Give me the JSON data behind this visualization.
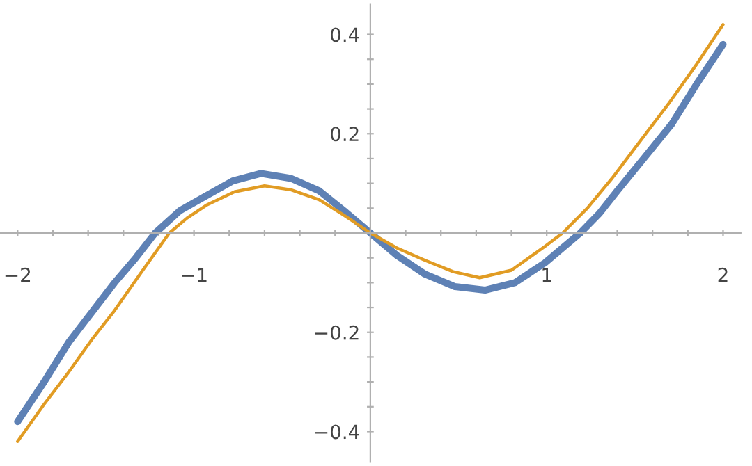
{
  "chart_data": {
    "type": "line",
    "series": [
      {
        "color": "#5e81b5",
        "x": [
          -2,
          -1.85,
          -1.71,
          -1.58,
          -1.45,
          -1.33,
          -1.22,
          -1.08,
          -0.93,
          -0.78,
          -0.62,
          -0.45,
          -0.29,
          -0.15,
          0,
          0.15,
          0.31,
          0.48,
          0.65,
          0.82,
          0.99,
          1.09,
          1.19,
          1.3,
          1.4,
          1.55,
          1.71,
          1.85,
          2
        ],
        "values": [
          -0.38,
          -0.3,
          -0.22,
          -0.16,
          -0.1,
          -0.05,
          0,
          0.045,
          0.075,
          0.105,
          0.12,
          0.11,
          0.085,
          0.045,
          0,
          -0.045,
          -0.083,
          -0.108,
          -0.115,
          -0.1,
          -0.06,
          -0.03,
          0,
          0.04,
          0.085,
          0.15,
          0.22,
          0.3,
          0.38
        ]
      },
      {
        "color": "#e19c24",
        "x": [
          -2,
          -1.85,
          -1.71,
          -1.58,
          -1.45,
          -1.3,
          -1.14,
          -1.04,
          -0.93,
          -0.77,
          -0.6,
          -0.45,
          -0.29,
          -0.15,
          0,
          0.15,
          0.31,
          0.47,
          0.62,
          0.8,
          0.99,
          1.09,
          1.23,
          1.37,
          1.53,
          1.69,
          1.85,
          2
        ],
        "values": [
          -0.42,
          -0.345,
          -0.28,
          -0.215,
          -0.156,
          -0.08,
          0,
          0.03,
          0.056,
          0.083,
          0.095,
          0.087,
          0.067,
          0.036,
          0,
          -0.03,
          -0.055,
          -0.078,
          -0.09,
          -0.075,
          -0.027,
          0,
          0.05,
          0.11,
          0.185,
          0.26,
          0.34,
          0.42
        ]
      }
    ],
    "xlim": [
      -2.1,
      2.1
    ],
    "ylim": [
      -0.46,
      0.46
    ],
    "xticks": [
      {
        "value": -2,
        "label": "−2"
      },
      {
        "value": -1.8,
        "label": null
      },
      {
        "value": -1.6,
        "label": null
      },
      {
        "value": -1.4,
        "label": null
      },
      {
        "value": -1.2,
        "label": null
      },
      {
        "value": -1,
        "label": "−1"
      },
      {
        "value": -0.8,
        "label": null
      },
      {
        "value": -0.6,
        "label": null
      },
      {
        "value": -0.4,
        "label": null
      },
      {
        "value": -0.2,
        "label": null
      },
      {
        "value": 0.2,
        "label": null
      },
      {
        "value": 0.4,
        "label": null
      },
      {
        "value": 0.6,
        "label": null
      },
      {
        "value": 0.8,
        "label": null
      },
      1,
      {
        "value": 1.2,
        "label": null
      },
      {
        "value": 1.4,
        "label": null
      },
      {
        "value": 1.6,
        "label": null
      },
      {
        "value": 1.8,
        "label": null
      },
      2
    ],
    "yticks": [
      {
        "value": -0.4,
        "label": "−0.4"
      },
      {
        "value": -0.35,
        "label": null
      },
      {
        "value": -0.3,
        "label": null
      },
      {
        "value": -0.25,
        "label": null
      },
      {
        "value": -0.2,
        "label": "−0.2"
      },
      {
        "value": -0.15,
        "label": null
      },
      {
        "value": -0.1,
        "label": null
      },
      {
        "value": -0.05,
        "label": null
      },
      {
        "value": 0.05,
        "label": null
      },
      {
        "value": 0.1,
        "label": null
      },
      {
        "value": 0.15,
        "label": null
      },
      {
        "value": 0.2,
        "label": "0.2"
      },
      {
        "value": 0.25,
        "label": null
      },
      {
        "value": 0.3,
        "label": null
      },
      {
        "value": 0.35,
        "label": null
      },
      {
        "value": 0.4,
        "label": "0.4"
      }
    ],
    "grid": false,
    "legend": false,
    "marker": "none",
    "line_style": "solid"
  }
}
